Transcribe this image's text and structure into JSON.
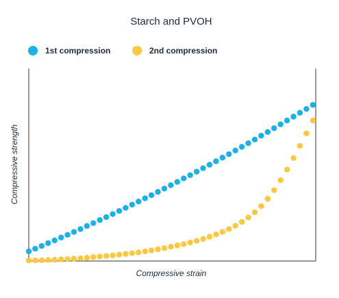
{
  "chart_data": {
    "type": "scatter",
    "title": "Starch and PVOH",
    "x_label": "Compressive strain",
    "y_label": "Compressive strength",
    "xlim": [
      0,
      100
    ],
    "ylim": [
      0,
      100
    ],
    "x": [
      0,
      2.25,
      4.5,
      6.75,
      9,
      11.25,
      13.5,
      15.75,
      18,
      20.25,
      22.5,
      24.75,
      27,
      29.25,
      31.5,
      33.75,
      36,
      38.25,
      40.5,
      42.75,
      45,
      47.25,
      49.5,
      51.75,
      54,
      56.25,
      58.5,
      60.75,
      63,
      65.25,
      67.5,
      69.75,
      72,
      74.25,
      76.5,
      78.75,
      81,
      83.25,
      85.5,
      87.75,
      90,
      92.25,
      94.5,
      96.75,
      99
    ],
    "legend": "top-left",
    "series": [
      {
        "name": "1st compression",
        "color": "#1ab0e8",
        "values": [
          5,
          6.4,
          7.8,
          9.3,
          10.7,
          12.2,
          13.6,
          15.1,
          16.6,
          18.2,
          19.7,
          21.3,
          22.8,
          24.4,
          26.0,
          27.6,
          29.3,
          30.9,
          32.6,
          34.2,
          35.9,
          37.6,
          39.4,
          41.1,
          42.9,
          44.6,
          46.4,
          48.2,
          50.0,
          51.8,
          53.7,
          55.5,
          57.4,
          59.3,
          61.2,
          63.1,
          65.1,
          67.0,
          69.0,
          71.0,
          73.0,
          75.0,
          77.0,
          79.0,
          81.1
        ]
      },
      {
        "name": "2nd compression",
        "color": "#fcc93e",
        "values": [
          0.3,
          0.3,
          0.4,
          0.5,
          0.6,
          0.8,
          1.0,
          1.2,
          1.5,
          1.7,
          2.0,
          2.3,
          2.6,
          2.9,
          3.3,
          3.7,
          4.1,
          4.5,
          5.0,
          5.5,
          6.1,
          6.7,
          7.4,
          8.1,
          8.8,
          9.6,
          10.5,
          11.5,
          12.6,
          13.8,
          15.1,
          16.6,
          18.3,
          20.3,
          22.6,
          25.3,
          28.5,
          32.3,
          36.8,
          42.0,
          47.5,
          53.5,
          59.8,
          66.3,
          73.0
        ]
      }
    ]
  }
}
